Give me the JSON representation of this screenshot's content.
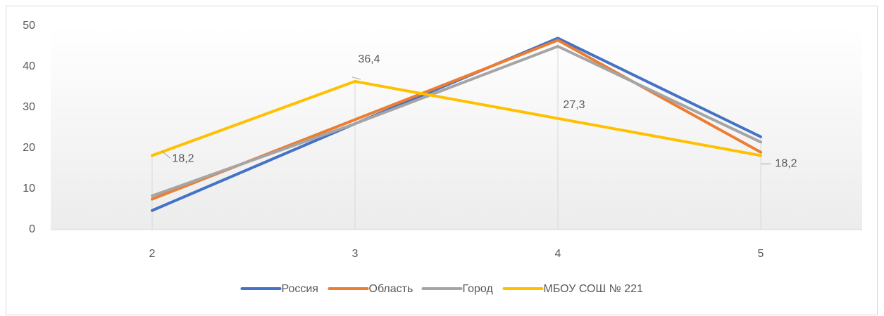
{
  "chart_data": {
    "type": "line",
    "categories": [
      "2",
      "3",
      "4",
      "5"
    ],
    "series": [
      {
        "name": "Россия",
        "color": "#4472c4",
        "values": [
          4.7,
          26,
          47,
          22.8
        ]
      },
      {
        "name": "Область",
        "color": "#ed7d31",
        "values": [
          7.5,
          27,
          46.5,
          19
        ]
      },
      {
        "name": "Город",
        "color": "#a5a5a5",
        "values": [
          8.3,
          26,
          45,
          21.5
        ]
      },
      {
        "name": "МБОУ СОШ № 221",
        "color": "#ffc000",
        "values": [
          18.2,
          36.4,
          27.3,
          18.2
        ],
        "value_labels": [
          "18,2",
          "36,4",
          "27,3",
          "18,2"
        ]
      }
    ],
    "ylim": [
      0,
      50
    ],
    "yticks": [
      0,
      10,
      20,
      30,
      40,
      50
    ],
    "grid": false,
    "drop_lines": true,
    "legend": "bottom"
  }
}
